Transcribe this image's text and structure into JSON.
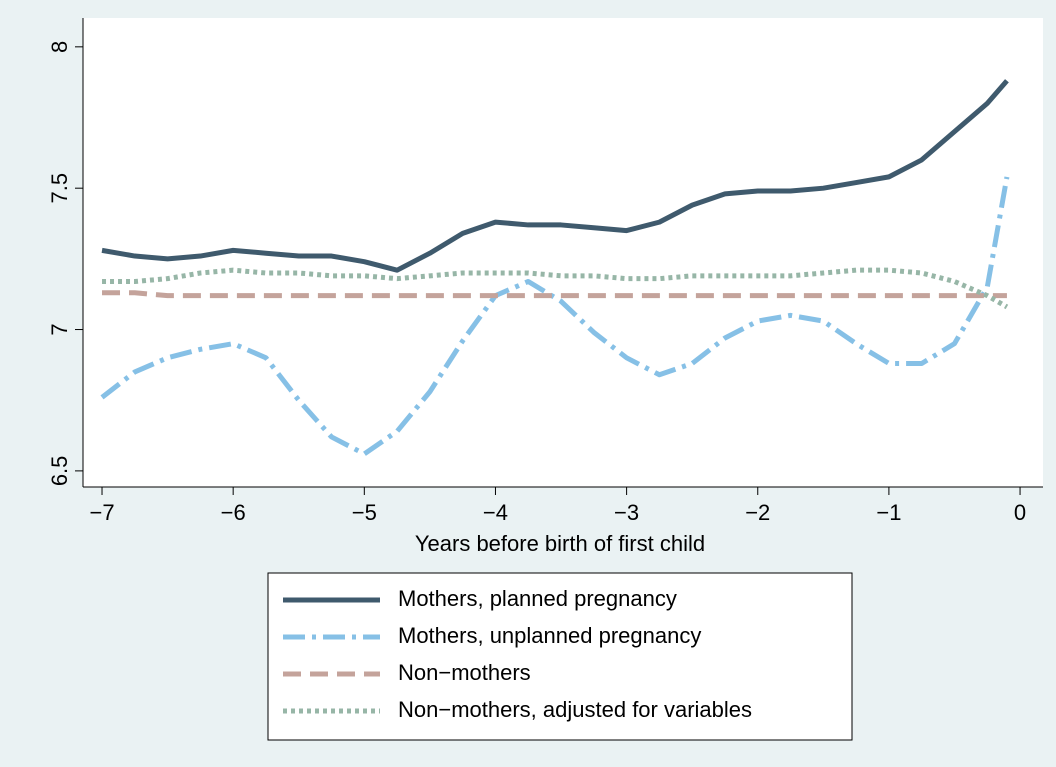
{
  "chart_data": {
    "type": "line",
    "x_label": "Years before birth of first child",
    "x": [
      -7,
      -6.75,
      -6.5,
      -6.25,
      -6,
      -5.75,
      -5.5,
      -5.25,
      -5,
      -4.75,
      -4.5,
      -4.25,
      -4,
      -3.75,
      -3.5,
      -3.25,
      -3,
      -2.75,
      -2.5,
      -2.25,
      -2,
      -1.75,
      -1.5,
      -1.25,
      -1,
      -0.75,
      -0.5,
      -0.25,
      -0.1
    ],
    "series": [
      {
        "name": "Mothers, planned pregnancy",
        "color": "#3f5a6d",
        "dash": "solid",
        "values": [
          7.28,
          7.26,
          7.25,
          7.26,
          7.28,
          7.27,
          7.26,
          7.26,
          7.24,
          7.21,
          7.27,
          7.34,
          7.38,
          7.37,
          7.37,
          7.36,
          7.35,
          7.38,
          7.44,
          7.48,
          7.49,
          7.49,
          7.5,
          7.52,
          7.54,
          7.6,
          7.7,
          7.8,
          7.88
        ]
      },
      {
        "name": "Mothers, unplanned pregnancy",
        "color": "#86c0e6",
        "dash": "dashdot",
        "values": [
          6.76,
          6.85,
          6.9,
          6.93,
          6.95,
          6.9,
          6.75,
          6.62,
          6.56,
          6.64,
          6.78,
          6.96,
          7.12,
          7.17,
          7.1,
          6.99,
          6.9,
          6.84,
          6.88,
          6.97,
          7.03,
          7.05,
          7.03,
          6.95,
          6.88,
          6.88,
          6.95,
          7.15,
          7.54
        ]
      },
      {
        "name": "Non−mothers",
        "color": "#c4a39b",
        "dash": "dash",
        "values": [
          7.13,
          7.13,
          7.12,
          7.12,
          7.12,
          7.12,
          7.12,
          7.12,
          7.12,
          7.12,
          7.12,
          7.12,
          7.12,
          7.12,
          7.12,
          7.12,
          7.12,
          7.12,
          7.12,
          7.12,
          7.12,
          7.12,
          7.12,
          7.12,
          7.12,
          7.12,
          7.12,
          7.12,
          7.12
        ]
      },
      {
        "name": "Non−mothers, adjusted for variables",
        "color": "#97b6a7",
        "dash": "dot",
        "values": [
          7.17,
          7.17,
          7.18,
          7.2,
          7.21,
          7.2,
          7.2,
          7.19,
          7.19,
          7.18,
          7.19,
          7.2,
          7.2,
          7.2,
          7.19,
          7.19,
          7.18,
          7.18,
          7.19,
          7.19,
          7.19,
          7.19,
          7.2,
          7.21,
          7.21,
          7.2,
          7.17,
          7.12,
          7.08
        ]
      }
    ],
    "xlim": [
      -7.145,
      0.175
    ],
    "ylim": [
      6.443,
      8.102
    ],
    "xticks": [
      {
        "value": -7,
        "label": "−7"
      },
      {
        "value": -6,
        "label": "−6"
      },
      {
        "value": -5,
        "label": "−5"
      },
      {
        "value": -4,
        "label": "−4"
      },
      {
        "value": -3,
        "label": "−3"
      },
      {
        "value": -2,
        "label": "−2"
      },
      {
        "value": -1,
        "label": "−1"
      },
      0
    ],
    "yticks": [
      6.5,
      7,
      7.5,
      8
    ],
    "grid": false,
    "legend": "bottom"
  }
}
